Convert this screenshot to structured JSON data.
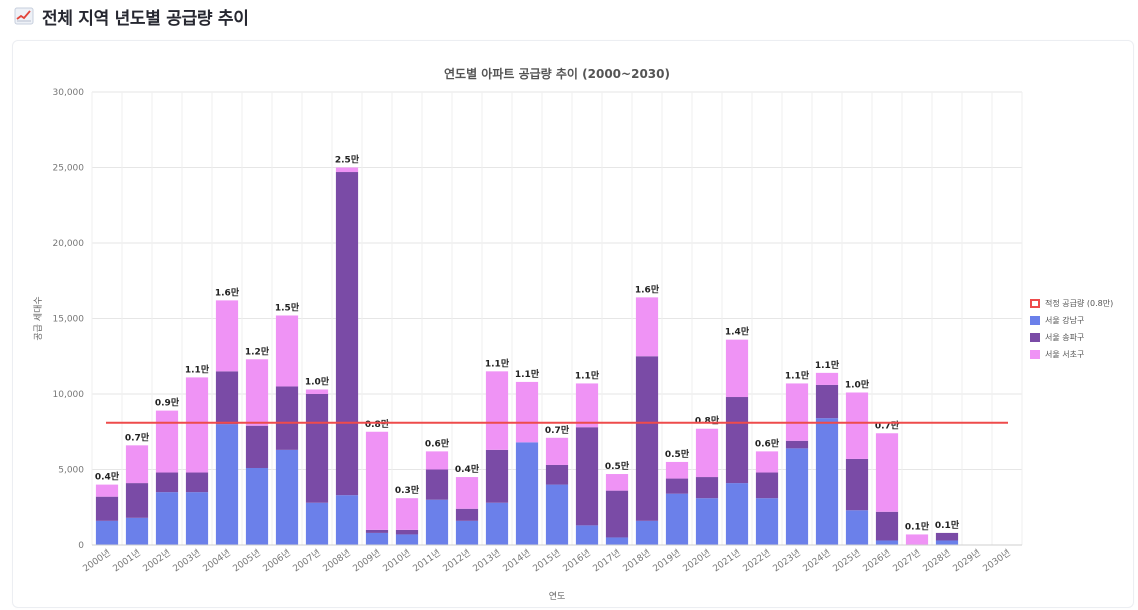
{
  "header": {
    "icon": "chart-increasing-icon",
    "title": "전체 지역 년도별 공급량 추이"
  },
  "colors": {
    "gangnam": "#6b80ea",
    "songpa": "#7a4ba6",
    "seocho": "#ef93f5",
    "threshold": "#ee4b4b",
    "label": "#222222",
    "grid": "#e6e6e6",
    "tick": "#777777"
  },
  "chart_data": {
    "type": "bar",
    "stacked": true,
    "title": "연도별 아파트 공급량 추이 (2000~2030)",
    "xlabel": "연도",
    "ylabel": "공급 세대수",
    "ylim": [
      0,
      30000
    ],
    "yticks": [
      0,
      5000,
      10000,
      15000,
      20000,
      25000,
      30000
    ],
    "ytick_labels": [
      "0",
      "5,000",
      "10,000",
      "15,000",
      "20,000",
      "25,000",
      "30,000"
    ],
    "categories": [
      "2000년",
      "2001년",
      "2002년",
      "2003년",
      "2004년",
      "2005년",
      "2006년",
      "2007년",
      "2008년",
      "2009년",
      "2010년",
      "2011년",
      "2012년",
      "2013년",
      "2014년",
      "2015년",
      "2016년",
      "2017년",
      "2018년",
      "2019년",
      "2020년",
      "2021년",
      "2022년",
      "2023년",
      "2024년",
      "2025년",
      "2026년",
      "2027년",
      "2028년",
      "2029년",
      "2030년"
    ],
    "series": [
      {
        "name": "서울 강남구",
        "key": "gangnam",
        "values": [
          1600,
          1800,
          3500,
          3500,
          8000,
          5100,
          6300,
          2800,
          3300,
          800,
          700,
          3000,
          1600,
          2800,
          6800,
          4000,
          1300,
          500,
          1600,
          3400,
          3100,
          4100,
          3100,
          6400,
          8400,
          2300,
          300,
          0,
          300,
          0,
          0
        ]
      },
      {
        "name": "서울 송파구",
        "key": "songpa",
        "values": [
          1600,
          2300,
          1300,
          1300,
          3500,
          2800,
          4200,
          7200,
          21400,
          200,
          300,
          2000,
          800,
          3500,
          0,
          1300,
          6500,
          3100,
          10900,
          1000,
          1400,
          5700,
          1700,
          500,
          2200,
          3400,
          1900,
          0,
          500,
          0,
          0
        ]
      },
      {
        "name": "서울 서초구",
        "key": "seocho",
        "values": [
          800,
          2500,
          4100,
          6300,
          4700,
          4400,
          4700,
          300,
          300,
          6500,
          2100,
          1200,
          2100,
          5200,
          4000,
          1800,
          2900,
          1100,
          3900,
          1100,
          3200,
          3800,
          1400,
          3800,
          800,
          4400,
          5200,
          700,
          0,
          0,
          0
        ]
      }
    ],
    "totals_labels": [
      "0.4만",
      "0.7만",
      "0.9만",
      "1.1만",
      "1.6만",
      "1.2만",
      "1.5만",
      "1.0만",
      "2.5만",
      "0.8만",
      "0.3만",
      "0.6만",
      "0.4만",
      "1.1만",
      "1.1만",
      "0.7만",
      "1.1만",
      "0.5만",
      "1.6만",
      "0.5만",
      "0.8만",
      "1.4만",
      "0.6만",
      "1.1만",
      "1.1만",
      "1.0만",
      "0.7만",
      "0.1만",
      "0.1만",
      "",
      ""
    ],
    "threshold": {
      "name": "적정 공급량 (0.8만)",
      "value": 8100
    },
    "legend_position": "right"
  }
}
